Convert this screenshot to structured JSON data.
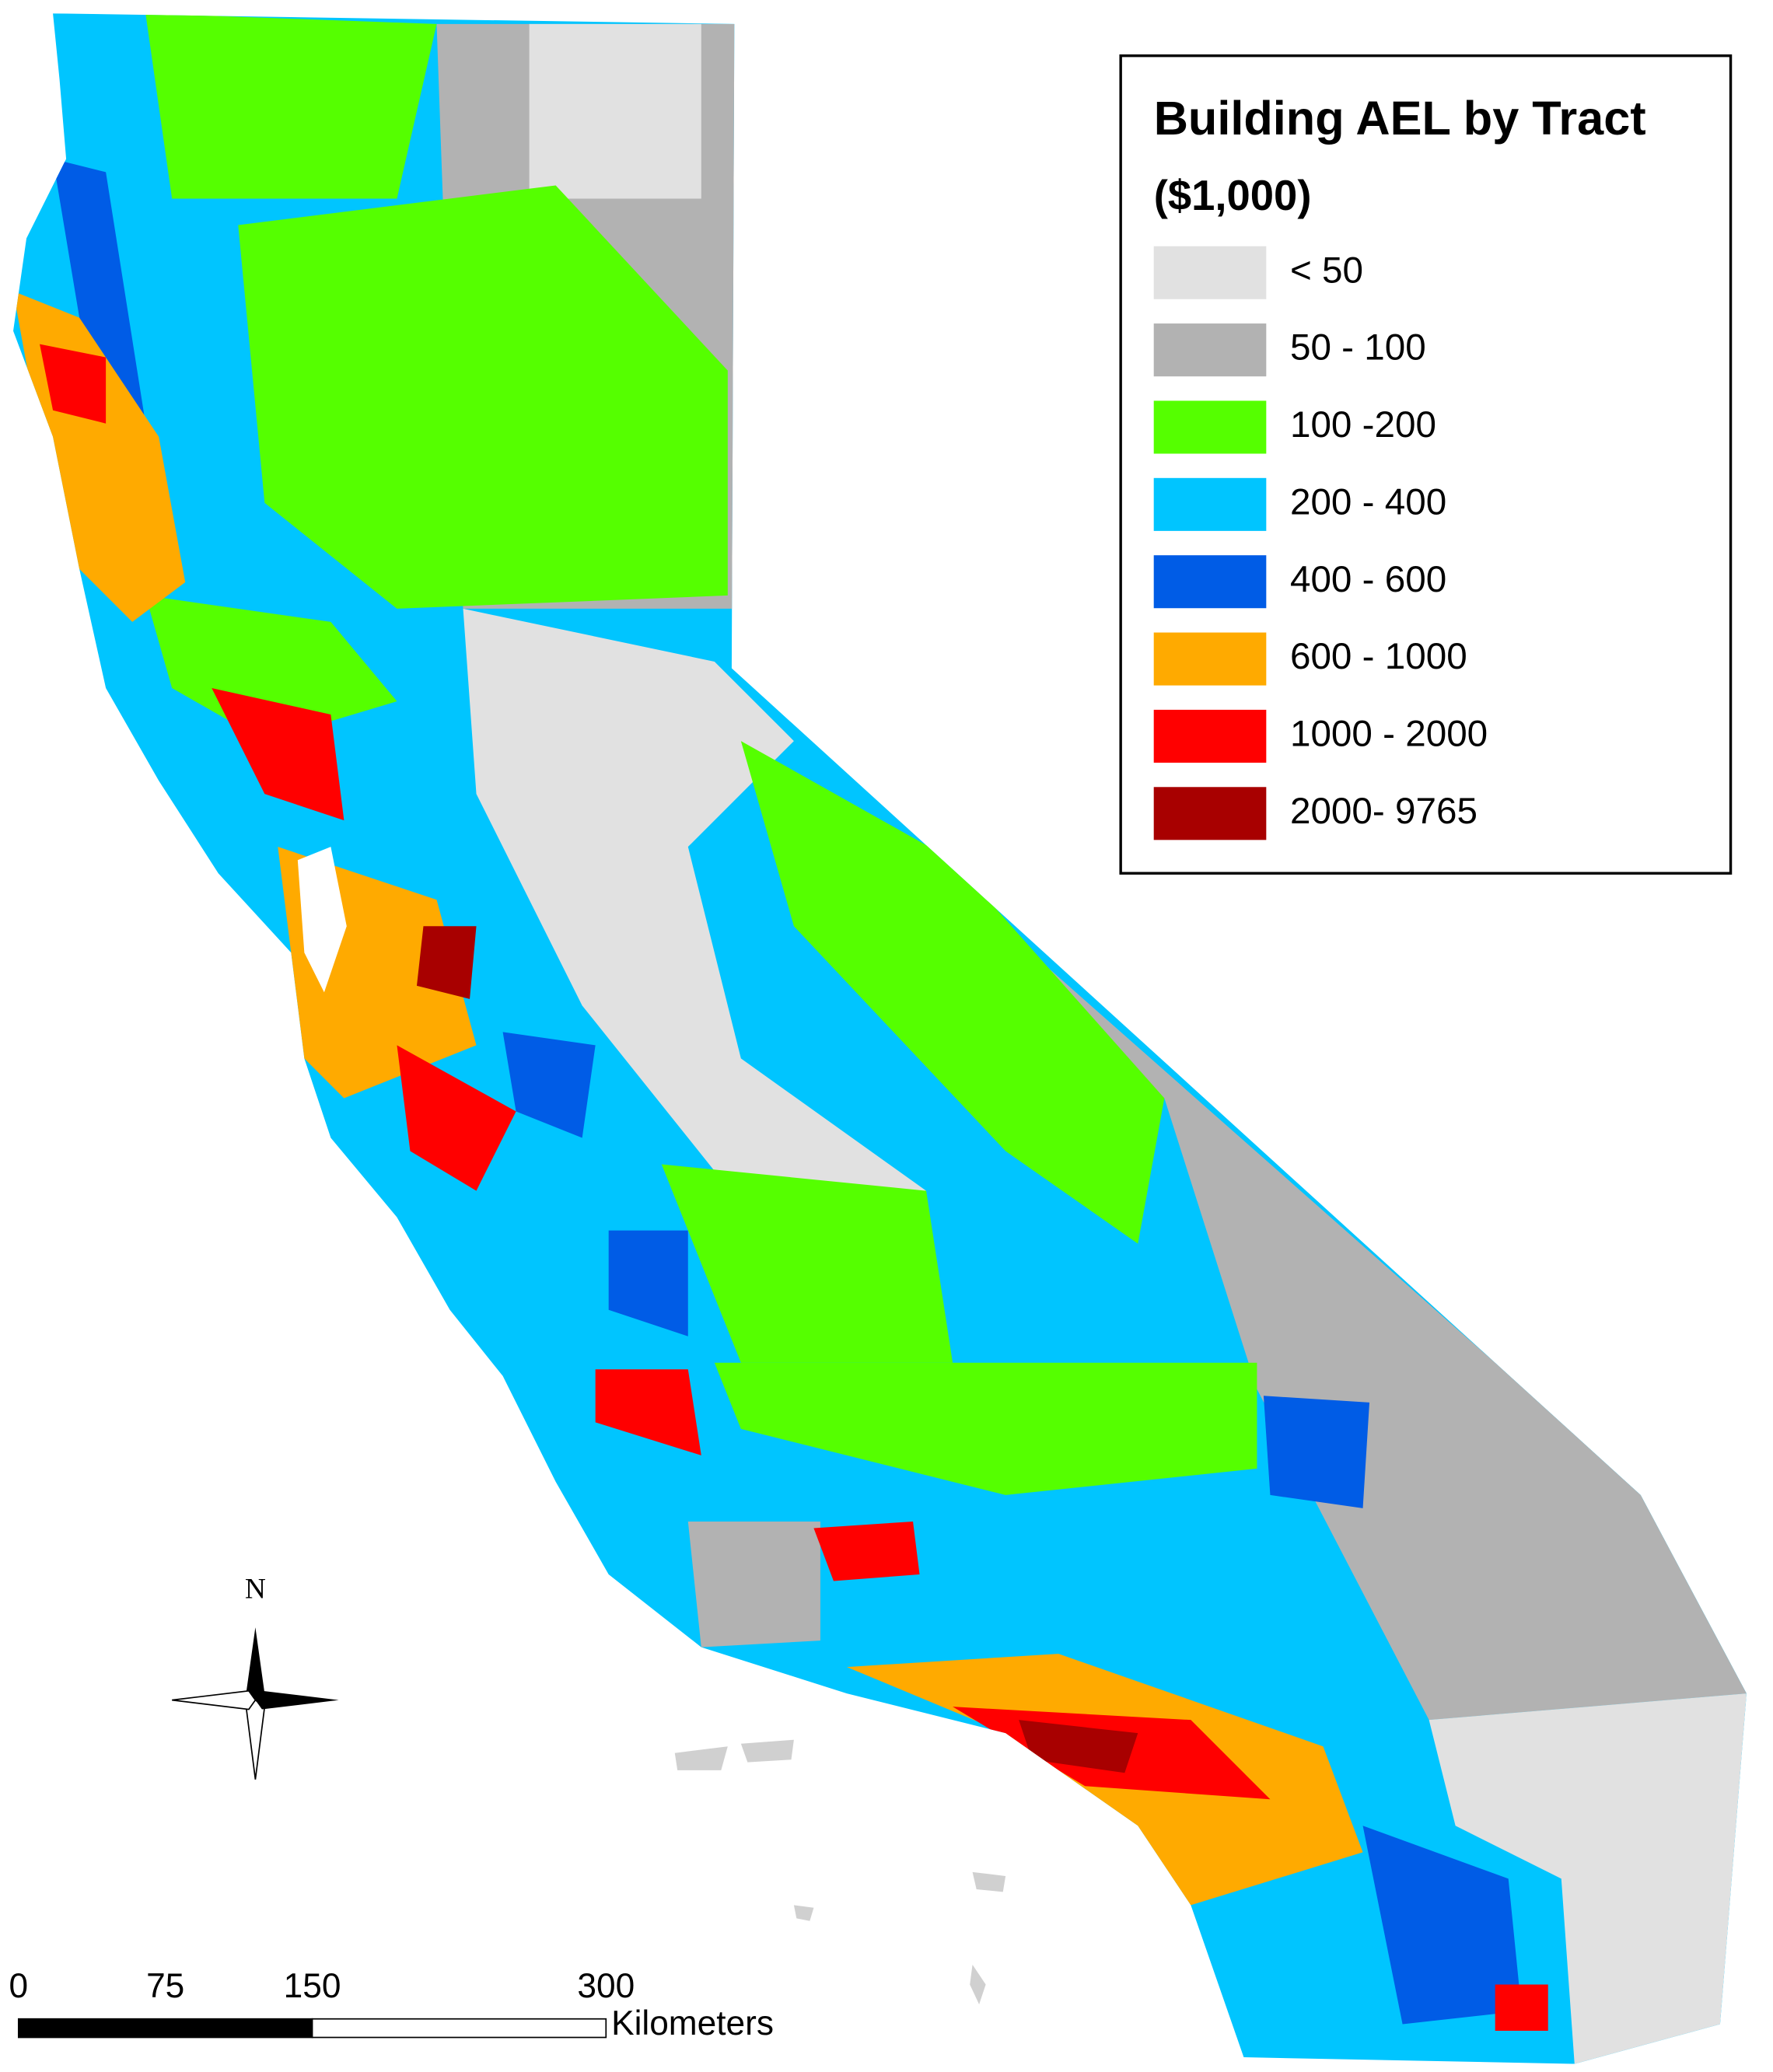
{
  "legend": {
    "title": "Building AEL by Tract",
    "subtitle": "($1,000)",
    "items": [
      {
        "label": "< 50",
        "color": "#e1e1e1"
      },
      {
        "label": "50 - 100",
        "color": "#b2b2b2"
      },
      {
        "label": "100 -200",
        "color": "#55ff00"
      },
      {
        "label": "200 - 400",
        "color": "#00c5ff"
      },
      {
        "label": "400 - 600",
        "color": "#005ce6"
      },
      {
        "label": "600 - 1000",
        "color": "#ffaa00"
      },
      {
        "label": "1000 - 2000",
        "color": "#ff0000"
      },
      {
        "label": "2000- 9765",
        "color": "#a80000"
      }
    ]
  },
  "north_arrow": {
    "label": "N"
  },
  "scale_bar": {
    "ticks": [
      0,
      75,
      150,
      300
    ],
    "unit": "Kilometers"
  }
}
